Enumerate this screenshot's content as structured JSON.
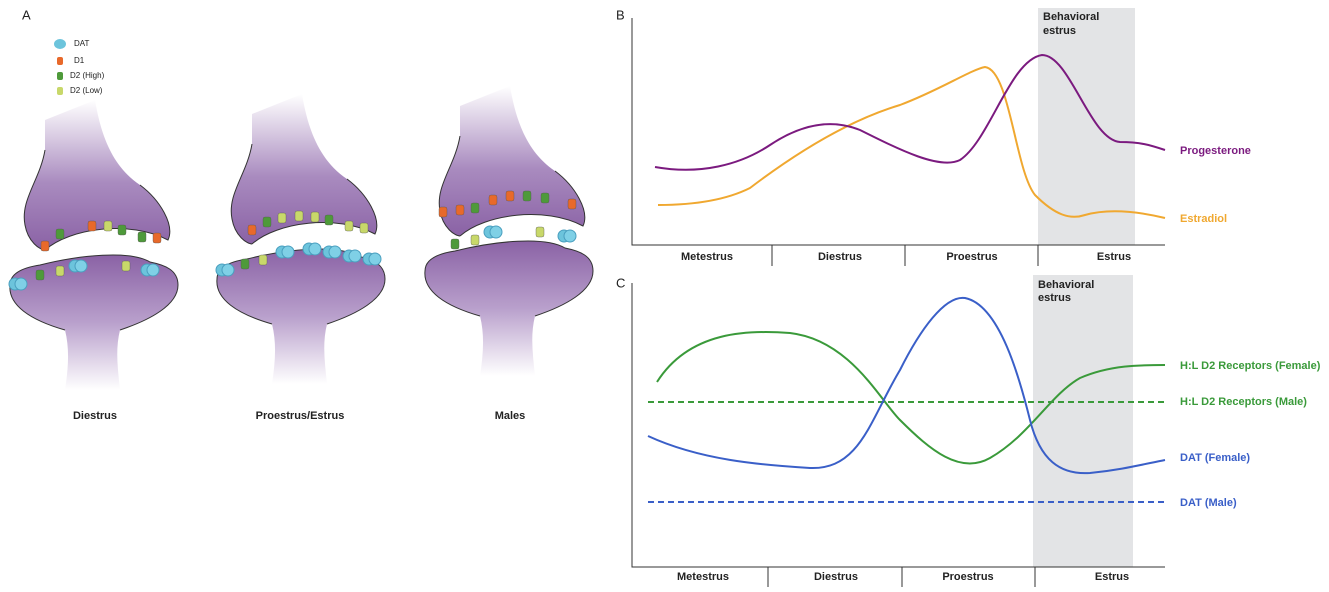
{
  "panel_a": {
    "label": "A",
    "legend": [
      "DAT",
      "D1",
      "D2 (High)",
      "D2 (Low)"
    ],
    "synapses": [
      "Diestrus",
      "Proestrus/Estrus",
      "Males"
    ]
  },
  "panel_b": {
    "label": "B",
    "shaded_label": [
      "Behavioral",
      "estrus"
    ],
    "phases": [
      "Metestrus",
      "Diestrus",
      "Proestrus",
      "Estrus"
    ],
    "curves": [
      "Progesterone",
      "Estradiol"
    ]
  },
  "panel_c": {
    "label": "C",
    "shaded_label": [
      "Behavioral",
      "estrus"
    ],
    "phases": [
      "Metestrus",
      "Diestrus",
      "Proestrus",
      "Estrus"
    ],
    "curves": [
      "H:L D2 Receptors (Female)",
      "H:L D2 Receptors (Male)",
      "DAT (Female)",
      "DAT (Male)"
    ]
  }
}
